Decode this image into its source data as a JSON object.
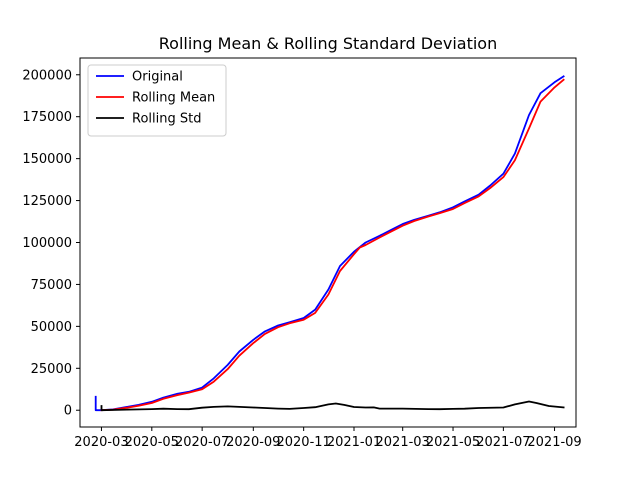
{
  "chart_data": {
    "type": "line",
    "title": "Rolling Mean & Rolling Standard Deviation",
    "xlabel": "",
    "ylabel": "",
    "xlim": [
      "2020-02-04",
      "2021-09-27"
    ],
    "ylim": [
      -10000,
      210000
    ],
    "x_ticks": [
      "2020-03",
      "2020-05",
      "2020-07",
      "2020-09",
      "2020-11",
      "2021-01",
      "2021-03",
      "2021-05",
      "2021-07",
      "2021-09"
    ],
    "x_tick_dates": [
      "2020-03-01",
      "2020-05-01",
      "2020-07-01",
      "2020-09-01",
      "2020-11-01",
      "2021-01-01",
      "2021-03-01",
      "2021-05-01",
      "2021-07-01",
      "2021-09-01"
    ],
    "y_ticks": [
      0,
      25000,
      50000,
      75000,
      100000,
      125000,
      150000,
      175000,
      200000
    ],
    "legend_position": "top-left",
    "grid": false,
    "series": [
      {
        "name": "Original",
        "color": "#0000ff",
        "points": [
          [
            "2020-02-23",
            8000
          ],
          [
            "2020-02-23",
            0
          ],
          [
            "2020-03-01",
            0
          ],
          [
            "2020-03-15",
            500
          ],
          [
            "2020-04-01",
            2000
          ],
          [
            "2020-04-15",
            3200
          ],
          [
            "2020-05-01",
            5000
          ],
          [
            "2020-05-15",
            7500
          ],
          [
            "2020-06-01",
            9800
          ],
          [
            "2020-06-15",
            11000
          ],
          [
            "2020-07-01",
            13500
          ],
          [
            "2020-07-15",
            19000
          ],
          [
            "2020-08-01",
            27000
          ],
          [
            "2020-08-15",
            35000
          ],
          [
            "2020-09-01",
            42000
          ],
          [
            "2020-09-15",
            47000
          ],
          [
            "2020-10-01",
            50500
          ],
          [
            "2020-10-15",
            52500
          ],
          [
            "2020-11-01",
            55000
          ],
          [
            "2020-11-15",
            60000
          ],
          [
            "2020-12-01",
            72000
          ],
          [
            "2020-12-15",
            86000
          ],
          [
            "2021-01-01",
            94500
          ],
          [
            "2021-01-15",
            100000
          ],
          [
            "2021-02-01",
            104000
          ],
          [
            "2021-02-15",
            107500
          ],
          [
            "2021-03-01",
            111000
          ],
          [
            "2021-03-15",
            113500
          ],
          [
            "2021-04-01",
            116000
          ],
          [
            "2021-04-15",
            118000
          ],
          [
            "2021-05-01",
            121000
          ],
          [
            "2021-05-15",
            124500
          ],
          [
            "2021-06-01",
            128500
          ],
          [
            "2021-06-15",
            134000
          ],
          [
            "2021-07-01",
            141000
          ],
          [
            "2021-07-15",
            153000
          ],
          [
            "2021-08-01",
            176000
          ],
          [
            "2021-08-15",
            189000
          ],
          [
            "2021-09-01",
            195500
          ],
          [
            "2021-09-12",
            199000
          ]
        ]
      },
      {
        "name": "Rolling Mean",
        "color": "#ff0000",
        "points": [
          [
            "2020-03-01",
            0
          ],
          [
            "2020-03-15",
            300
          ],
          [
            "2020-04-01",
            1500
          ],
          [
            "2020-04-15",
            2700
          ],
          [
            "2020-05-01",
            4300
          ],
          [
            "2020-05-15",
            6800
          ],
          [
            "2020-06-01",
            9000
          ],
          [
            "2020-06-15",
            10500
          ],
          [
            "2020-07-01",
            12500
          ],
          [
            "2020-07-15",
            17000
          ],
          [
            "2020-08-01",
            24500
          ],
          [
            "2020-08-15",
            32500
          ],
          [
            "2020-09-01",
            40000
          ],
          [
            "2020-09-15",
            45500
          ],
          [
            "2020-10-01",
            49500
          ],
          [
            "2020-10-15",
            51800
          ],
          [
            "2020-11-01",
            54000
          ],
          [
            "2020-11-15",
            58000
          ],
          [
            "2020-12-01",
            69000
          ],
          [
            "2020-12-15",
            83000
          ],
          [
            "2021-01-01",
            93000
          ],
          [
            "2021-01-08",
            97000
          ],
          [
            "2021-01-15",
            98500
          ],
          [
            "2021-02-01",
            103000
          ],
          [
            "2021-02-15",
            106500
          ],
          [
            "2021-03-01",
            110000
          ],
          [
            "2021-03-15",
            112800
          ],
          [
            "2021-04-01",
            115500
          ],
          [
            "2021-04-15",
            117500
          ],
          [
            "2021-05-01",
            120000
          ],
          [
            "2021-05-15",
            123500
          ],
          [
            "2021-06-01",
            127500
          ],
          [
            "2021-06-15",
            132500
          ],
          [
            "2021-07-01",
            139000
          ],
          [
            "2021-07-15",
            149000
          ],
          [
            "2021-08-01",
            168000
          ],
          [
            "2021-08-15",
            184000
          ],
          [
            "2021-09-01",
            192500
          ],
          [
            "2021-09-12",
            197000
          ]
        ]
      },
      {
        "name": "Rolling Std",
        "color": "#000000",
        "points": [
          [
            "2020-03-01",
            2500
          ],
          [
            "2020-03-01",
            0
          ],
          [
            "2020-04-01",
            400
          ],
          [
            "2020-05-01",
            700
          ],
          [
            "2020-05-15",
            900
          ],
          [
            "2020-06-01",
            700
          ],
          [
            "2020-06-15",
            600
          ],
          [
            "2020-07-01",
            1500
          ],
          [
            "2020-07-15",
            2000
          ],
          [
            "2020-08-01",
            2300
          ],
          [
            "2020-08-15",
            2000
          ],
          [
            "2020-09-01",
            1600
          ],
          [
            "2020-09-15",
            1300
          ],
          [
            "2020-10-01",
            1000
          ],
          [
            "2020-10-15",
            800
          ],
          [
            "2020-11-01",
            1300
          ],
          [
            "2020-11-15",
            1800
          ],
          [
            "2020-12-01",
            3500
          ],
          [
            "2020-12-10",
            4000
          ],
          [
            "2020-12-20",
            3200
          ],
          [
            "2021-01-01",
            1900
          ],
          [
            "2021-01-15",
            1600
          ],
          [
            "2021-01-25",
            1700
          ],
          [
            "2021-02-01",
            1000
          ],
          [
            "2021-03-01",
            1000
          ],
          [
            "2021-04-01",
            700
          ],
          [
            "2021-04-15",
            600
          ],
          [
            "2021-05-01",
            800
          ],
          [
            "2021-05-15",
            900
          ],
          [
            "2021-06-01",
            1300
          ],
          [
            "2021-07-01",
            1600
          ],
          [
            "2021-07-15",
            3500
          ],
          [
            "2021-08-01",
            5200
          ],
          [
            "2021-08-10",
            4300
          ],
          [
            "2021-08-25",
            2500
          ],
          [
            "2021-09-12",
            1700
          ]
        ]
      }
    ]
  }
}
